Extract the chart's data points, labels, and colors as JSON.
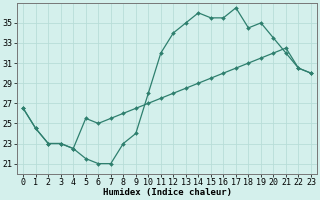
{
  "xlabel": "Humidex (Indice chaleur)",
  "line1_x": [
    0,
    1,
    2,
    3,
    4,
    5,
    6,
    7,
    8,
    9,
    10,
    11,
    12,
    13,
    14,
    15,
    16,
    17,
    18,
    19,
    20,
    21,
    22,
    23
  ],
  "line1_y": [
    26.5,
    24.5,
    23.0,
    23.0,
    22.5,
    21.5,
    21.0,
    21.0,
    23.0,
    24.0,
    28.0,
    32.0,
    34.0,
    35.0,
    36.0,
    35.5,
    35.5,
    36.5,
    34.5,
    35.0,
    33.5,
    32.0,
    30.5,
    30.0
  ],
  "line2_x": [
    0,
    1,
    2,
    3,
    4,
    5,
    6,
    7,
    8,
    9,
    10,
    11,
    12,
    13,
    14,
    15,
    16,
    17,
    18,
    19,
    20,
    21,
    22,
    23
  ],
  "line2_y": [
    26.5,
    24.5,
    23.0,
    23.0,
    22.5,
    25.5,
    25.0,
    25.5,
    26.0,
    26.5,
    27.0,
    27.5,
    28.0,
    28.5,
    29.0,
    29.5,
    30.0,
    30.5,
    31.0,
    31.5,
    32.0,
    32.5,
    30.5,
    30.0
  ],
  "line_color": "#2e7f6e",
  "bg_color": "#d4f0ec",
  "grid_color": "#b8ddd8",
  "ylim": [
    20.0,
    37.0
  ],
  "xlim": [
    -0.5,
    23.5
  ],
  "yticks": [
    21,
    23,
    25,
    27,
    29,
    31,
    33,
    35
  ],
  "xticks": [
    0,
    1,
    2,
    3,
    4,
    5,
    6,
    7,
    8,
    9,
    10,
    11,
    12,
    13,
    14,
    15,
    16,
    17,
    18,
    19,
    20,
    21,
    22,
    23
  ],
  "xlabel_fontsize": 6.5,
  "tick_fontsize": 6.0,
  "marker_size": 2.0,
  "line_width": 0.9
}
